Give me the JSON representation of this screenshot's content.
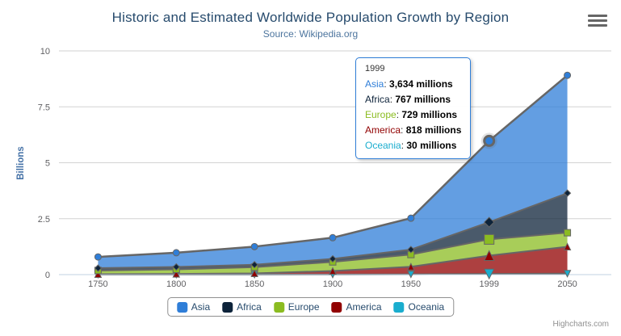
{
  "header": {
    "title": "Historic and Estimated Worldwide Population Growth by Region",
    "subtitle": "Source: Wikipedia.org"
  },
  "credits_label": "Highcharts.com",
  "colors": {
    "title": "#274b6d",
    "subtitle": "#4d759e",
    "axis_label": "#606063",
    "axis_title": "#4572a7",
    "grid": "#d2d2d2",
    "axis_line": "#c0d0e0",
    "series_line": "#666666",
    "tooltip_border": "#2f7ed8",
    "legend_border": "#909090"
  },
  "chart_data": {
    "type": "area",
    "stacking": "normal",
    "title": "Historic and Estimated Worldwide Population Growth by Region",
    "subtitle": "Source: Wikipedia.org",
    "categories": [
      "1750",
      "1800",
      "1850",
      "1900",
      "1950",
      "1999",
      "2050"
    ],
    "series": [
      {
        "name": "Asia",
        "color": "#2f7ed8",
        "marker": "circle",
        "values": [
          502,
          635,
          809,
          947,
          1402,
          3634,
          5268
        ]
      },
      {
        "name": "Africa",
        "color": "#0d233a",
        "marker": "diamond",
        "values": [
          106,
          107,
          111,
          133,
          221,
          767,
          1766
        ]
      },
      {
        "name": "Europe",
        "color": "#8bbc21",
        "marker": "square",
        "values": [
          163,
          203,
          276,
          408,
          547,
          729,
          628
        ]
      },
      {
        "name": "America",
        "color": "#910000",
        "marker": "triangle",
        "values": [
          18,
          31,
          54,
          156,
          339,
          818,
          1201
        ]
      },
      {
        "name": "Oceania",
        "color": "#1aadce",
        "marker": "triangle-down",
        "values": [
          2,
          2,
          2,
          6,
          13,
          30,
          46
        ]
      }
    ],
    "values_unit": "millions",
    "unit_scale": 1000,
    "ylabel": "Billions",
    "xlabel": "",
    "ylim": [
      0,
      10
    ],
    "yticks": [
      {
        "value": 0,
        "label": "0"
      },
      {
        "value": 2.5,
        "label": "2.5"
      },
      {
        "value": 5,
        "label": "5"
      },
      {
        "value": 7.5,
        "label": "7.5"
      },
      {
        "value": 10,
        "label": "10"
      }
    ],
    "grid": true,
    "fill_opacity": 0.75,
    "legend_position": "bottom"
  },
  "tooltip": {
    "header": "1999",
    "hovered_category": "1999",
    "hovered_series": "Asia",
    "rows": [
      {
        "name": "Asia",
        "value": "3,634 millions"
      },
      {
        "name": "Africa",
        "value": "767 millions"
      },
      {
        "name": "Europe",
        "value": "729 millions"
      },
      {
        "name": "America",
        "value": "818 millions"
      },
      {
        "name": "Oceania",
        "value": "30 millions"
      }
    ]
  },
  "legend": {
    "items": [
      "Asia",
      "Africa",
      "Europe",
      "America",
      "Oceania"
    ]
  }
}
